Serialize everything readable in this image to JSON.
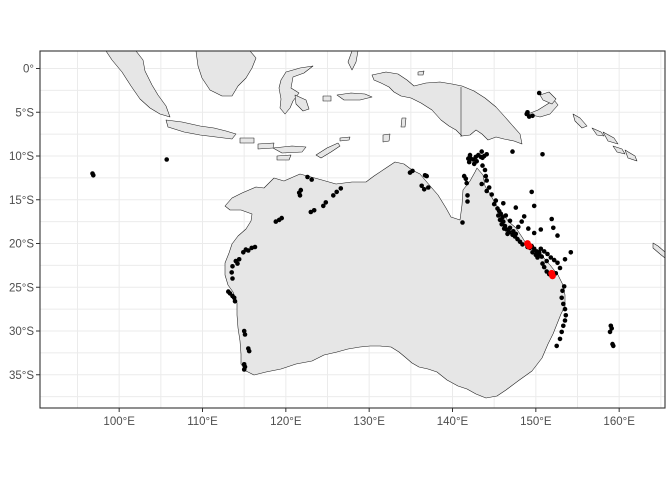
{
  "chart_data": {
    "type": "scatter",
    "subtype": "map",
    "title": "",
    "xlabel": "",
    "ylabel": "",
    "xlim": [
      90.5,
      165.5
    ],
    "ylim": [
      -38.8,
      2.0
    ],
    "grid": true,
    "x_ticks": [
      {
        "value": 100,
        "label": "100°E"
      },
      {
        "value": 110,
        "label": "110°E"
      },
      {
        "value": 120,
        "label": "120°E"
      },
      {
        "value": 130,
        "label": "130°E"
      },
      {
        "value": 140,
        "label": "140°E"
      },
      {
        "value": 150,
        "label": "150°E"
      },
      {
        "value": 160,
        "label": "160°E"
      }
    ],
    "y_ticks": [
      {
        "value": 0,
        "label": "0°"
      },
      {
        "value": -5,
        "label": "5°S"
      },
      {
        "value": -10,
        "label": "10°S"
      },
      {
        "value": -15,
        "label": "15°S"
      },
      {
        "value": -20,
        "label": "20°S"
      },
      {
        "value": -25,
        "label": "25°S"
      },
      {
        "value": -30,
        "label": "30°S"
      },
      {
        "value": -35,
        "label": "35°S"
      }
    ],
    "colors": {
      "land_fill": "#e6e6e6",
      "land_outline": "#1a1a1a",
      "grid": "#ebebeb",
      "points": "#000000",
      "highlight": "#ff0000"
    },
    "series": [
      {
        "color": "#000000",
        "points": [
          [
            96.8,
            -12.0
          ],
          [
            96.9,
            -12.2
          ],
          [
            105.7,
            -10.4
          ],
          [
            113.1,
            -25.5
          ],
          [
            113.3,
            -25.7
          ],
          [
            113.6,
            -26.0
          ],
          [
            113.8,
            -26.2
          ],
          [
            113.9,
            -26.6
          ],
          [
            113.6,
            -24.0
          ],
          [
            113.5,
            -23.3
          ],
          [
            113.6,
            -22.6
          ],
          [
            114.0,
            -22.0
          ],
          [
            114.4,
            -21.8
          ],
          [
            114.2,
            -22.3
          ],
          [
            114.9,
            -21.0
          ],
          [
            115.2,
            -20.7
          ],
          [
            115.5,
            -20.8
          ],
          [
            115.9,
            -20.5
          ],
          [
            116.3,
            -20.4
          ],
          [
            118.8,
            -17.5
          ],
          [
            119.2,
            -17.3
          ],
          [
            119.5,
            -17.1
          ],
          [
            121.6,
            -14.2
          ],
          [
            121.8,
            -13.9
          ],
          [
            121.7,
            -14.5
          ],
          [
            122.6,
            -12.4
          ],
          [
            123.1,
            -12.7
          ],
          [
            123.0,
            -16.4
          ],
          [
            123.4,
            -16.2
          ],
          [
            124.5,
            -15.7
          ],
          [
            124.8,
            -15.3
          ],
          [
            125.7,
            -14.5
          ],
          [
            126.1,
            -14.1
          ],
          [
            126.6,
            -13.7
          ],
          [
            115.0,
            -30.0
          ],
          [
            115.1,
            -30.4
          ],
          [
            115.5,
            -32.0
          ],
          [
            115.6,
            -32.3
          ],
          [
            115.0,
            -33.8
          ],
          [
            115.1,
            -34.1
          ],
          [
            115.0,
            -34.4
          ],
          [
            134.9,
            -11.9
          ],
          [
            135.2,
            -11.7
          ],
          [
            136.7,
            -12.2
          ],
          [
            136.9,
            -12.3
          ],
          [
            136.3,
            -13.4
          ],
          [
            136.6,
            -13.8
          ],
          [
            137.1,
            -13.6
          ],
          [
            141.2,
            -17.6
          ],
          [
            141.4,
            -12.3
          ],
          [
            141.6,
            -12.6
          ],
          [
            141.7,
            -13.1
          ],
          [
            141.8,
            -14.5
          ],
          [
            141.8,
            -15.2
          ],
          [
            142.0,
            -10.7
          ],
          [
            142.2,
            -10.3
          ],
          [
            142.5,
            -10.4
          ],
          [
            142.8,
            -10.1
          ],
          [
            143.1,
            -9.9
          ],
          [
            143.4,
            -10.1
          ],
          [
            143.6,
            -10.2
          ],
          [
            143.8,
            -10.0
          ],
          [
            144.1,
            -9.8
          ],
          [
            142.6,
            -10.9
          ],
          [
            142.9,
            -10.6
          ],
          [
            143.6,
            -11.1
          ],
          [
            143.9,
            -11.6
          ],
          [
            144.0,
            -12.3
          ],
          [
            144.1,
            -12.8
          ],
          [
            143.5,
            -13.2
          ],
          [
            144.4,
            -13.6
          ],
          [
            144.7,
            -14.4
          ],
          [
            144.1,
            -14.0
          ],
          [
            145.2,
            -15.1
          ],
          [
            145.0,
            -15.5
          ],
          [
            145.4,
            -16.0
          ],
          [
            145.6,
            -16.3
          ],
          [
            145.8,
            -16.6
          ],
          [
            146.0,
            -17.0
          ],
          [
            146.1,
            -17.5
          ],
          [
            146.3,
            -18.0
          ],
          [
            146.5,
            -18.4
          ],
          [
            146.8,
            -18.7
          ],
          [
            147.2,
            -19.0
          ],
          [
            147.5,
            -19.2
          ],
          [
            147.8,
            -19.5
          ],
          [
            148.1,
            -19.8
          ],
          [
            148.4,
            -20.1
          ],
          [
            145.5,
            -16.8
          ],
          [
            145.7,
            -17.3
          ],
          [
            145.9,
            -17.8
          ],
          [
            146.2,
            -18.3
          ],
          [
            146.6,
            -18.9
          ],
          [
            146.9,
            -18.2
          ],
          [
            147.3,
            -18.6
          ],
          [
            147.6,
            -18.9
          ],
          [
            146.4,
            -16.8
          ],
          [
            146.9,
            -17.4
          ],
          [
            146.1,
            -15.4
          ],
          [
            147.6,
            -15.9
          ],
          [
            148.6,
            -16.9
          ],
          [
            148.3,
            -17.5
          ],
          [
            149.1,
            -18.3
          ],
          [
            149.8,
            -18.8
          ],
          [
            147.9,
            -18.1
          ],
          [
            149.0,
            -20.4
          ],
          [
            149.3,
            -20.5
          ],
          [
            149.5,
            -20.3
          ],
          [
            149.8,
            -20.6
          ],
          [
            150.1,
            -20.9
          ],
          [
            150.4,
            -21.2
          ],
          [
            150.7,
            -21.5
          ],
          [
            149.6,
            -21.0
          ],
          [
            150.0,
            -21.3
          ],
          [
            150.2,
            -21.6
          ],
          [
            150.4,
            -21.0
          ],
          [
            150.6,
            -20.6
          ],
          [
            151.0,
            -20.9
          ],
          [
            151.4,
            -21.2
          ],
          [
            151.8,
            -21.6
          ],
          [
            152.2,
            -21.9
          ],
          [
            152.6,
            -22.2
          ],
          [
            151.3,
            -22.0
          ],
          [
            150.8,
            -22.3
          ],
          [
            151.0,
            -22.7
          ],
          [
            151.3,
            -23.2
          ],
          [
            151.6,
            -23.5
          ],
          [
            152.0,
            -23.8
          ],
          [
            152.4,
            -23.4
          ],
          [
            152.9,
            -22.8
          ],
          [
            153.5,
            -21.8
          ],
          [
            154.2,
            -21.0
          ],
          [
            151.9,
            -17.2
          ],
          [
            152.1,
            -18.2
          ],
          [
            152.6,
            -19.1
          ],
          [
            149.8,
            -15.7
          ],
          [
            149.5,
            -14.1
          ],
          [
            150.6,
            -18.4
          ],
          [
            153.4,
            -24.9
          ],
          [
            153.2,
            -25.4
          ],
          [
            153.1,
            -26.2
          ],
          [
            153.3,
            -26.9
          ],
          [
            153.5,
            -27.5
          ],
          [
            153.6,
            -28.2
          ],
          [
            153.5,
            -28.8
          ],
          [
            153.3,
            -29.4
          ],
          [
            153.1,
            -30.1
          ],
          [
            152.9,
            -30.9
          ],
          [
            152.5,
            -31.7
          ],
          [
            150.4,
            -2.8
          ],
          [
            148.9,
            -5.2
          ],
          [
            149.2,
            -5.5
          ],
          [
            149.6,
            -5.4
          ],
          [
            149.0,
            -5.0
          ],
          [
            150.8,
            -9.8
          ],
          [
            147.2,
            -9.5
          ],
          [
            142.1,
            -9.9
          ],
          [
            141.9,
            -10.3
          ],
          [
            143.5,
            -9.5
          ],
          [
            159.0,
            -29.4
          ],
          [
            159.1,
            -29.7
          ],
          [
            158.9,
            -30.1
          ],
          [
            159.2,
            -31.5
          ],
          [
            159.3,
            -31.7
          ]
        ]
      },
      {
        "color": "#ff0000",
        "points": [
          [
            149.0,
            -20.0
          ],
          [
            149.2,
            -20.3
          ],
          [
            151.9,
            -23.4
          ],
          [
            152.0,
            -23.7
          ]
        ]
      }
    ]
  }
}
